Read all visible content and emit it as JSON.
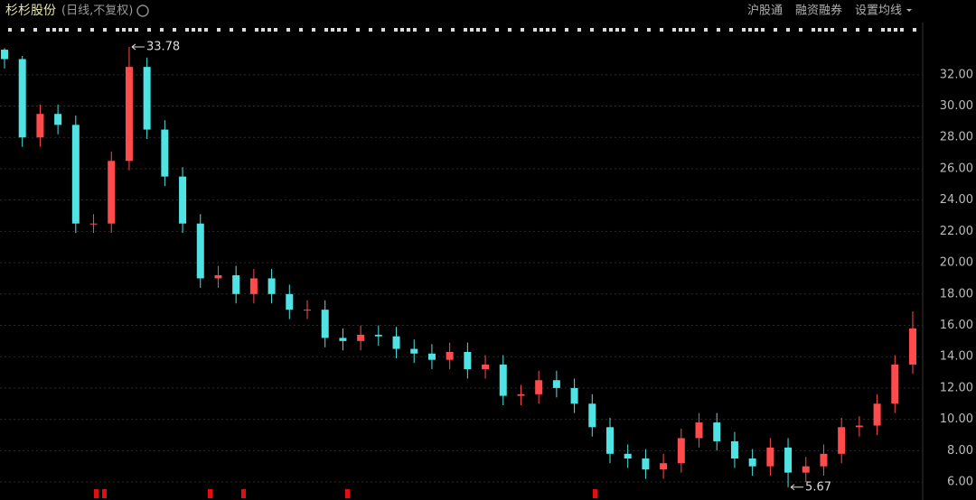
{
  "chart_data": {
    "type": "candlestick",
    "title": "杉杉股份",
    "subtitle": "(日线,不复权)",
    "buttons": [
      "沪股通",
      "融资融券",
      "设置均线"
    ],
    "up_color": "#ff4b4b",
    "down_color": "#4fe3e3",
    "grid": true,
    "ylim": [
      4.85,
      34.18
    ],
    "yticks": [
      {
        "value": 6,
        "label": "6.00"
      },
      {
        "value": 8,
        "label": "8.00"
      },
      {
        "value": 10,
        "label": "10.00"
      },
      {
        "value": 12,
        "label": "12.00"
      },
      {
        "value": 14,
        "label": "14.00"
      },
      {
        "value": 16,
        "label": "16.00"
      },
      {
        "value": 18,
        "label": "18.00"
      },
      {
        "value": 20,
        "label": "20.00"
      },
      {
        "value": 22,
        "label": "22.00"
      },
      {
        "value": 24,
        "label": "24.00"
      },
      {
        "value": 26,
        "label": "26.00"
      },
      {
        "value": 28,
        "label": "28.00"
      },
      {
        "value": 30,
        "label": "30.00"
      },
      {
        "value": 32,
        "label": "32.00"
      }
    ],
    "open": [
      33.6,
      33.0,
      28.0,
      29.5,
      28.8,
      22.5,
      22.5,
      26.5,
      32.5,
      28.5,
      25.5,
      22.5,
      19.0,
      19.2,
      18.0,
      19.0,
      18.0,
      17.0,
      17.0,
      15.2,
      15.0,
      15.4,
      15.3,
      14.5,
      14.2,
      13.8,
      14.3,
      13.2,
      13.5,
      11.5,
      11.6,
      12.5,
      12.0,
      11.0,
      9.5,
      7.8,
      7.5,
      6.8,
      7.2,
      8.8,
      9.8,
      8.6,
      7.5,
      7.0,
      8.2,
      6.6,
      7.0,
      7.8,
      9.5,
      9.6,
      11.0,
      13.5
    ],
    "high": [
      33.7,
      33.2,
      30.1,
      30.1,
      29.4,
      23.1,
      27.1,
      33.78,
      33.1,
      29.1,
      26.1,
      23.1,
      19.8,
      19.8,
      19.6,
      19.6,
      18.6,
      17.6,
      17.6,
      15.8,
      16.0,
      16.0,
      15.9,
      15.1,
      14.8,
      14.9,
      14.9,
      14.1,
      14.1,
      12.2,
      13.1,
      13.1,
      12.6,
      11.6,
      10.1,
      8.4,
      8.1,
      7.8,
      9.4,
      10.4,
      10.4,
      9.2,
      8.1,
      8.8,
      8.8,
      7.6,
      8.4,
      10.1,
      10.2,
      11.6,
      14.1,
      16.9
    ],
    "low": [
      32.4,
      27.4,
      27.4,
      28.2,
      21.9,
      21.9,
      21.9,
      25.9,
      27.9,
      24.9,
      21.9,
      18.4,
      18.4,
      17.4,
      17.4,
      17.4,
      16.4,
      16.4,
      14.6,
      14.4,
      14.4,
      14.7,
      13.9,
      13.6,
      13.2,
      13.2,
      12.6,
      12.6,
      10.9,
      10.9,
      11.0,
      11.4,
      10.4,
      8.9,
      7.2,
      6.9,
      6.2,
      6.2,
      6.6,
      8.2,
      8.0,
      6.9,
      6.4,
      6.4,
      5.67,
      6.0,
      6.4,
      7.2,
      8.9,
      9.0,
      10.4,
      12.9
    ],
    "close": [
      33.0,
      28.0,
      29.5,
      28.8,
      22.5,
      22.5,
      26.5,
      32.5,
      28.5,
      25.5,
      22.5,
      19.0,
      19.2,
      18.0,
      19.0,
      18.0,
      17.0,
      17.0,
      15.2,
      15.0,
      15.4,
      15.3,
      14.5,
      14.2,
      13.8,
      14.3,
      13.2,
      13.5,
      11.5,
      11.6,
      12.5,
      12.0,
      11.0,
      9.5,
      7.8,
      7.5,
      6.8,
      7.2,
      8.8,
      9.8,
      8.6,
      7.5,
      7.0,
      8.2,
      6.6,
      7.0,
      7.8,
      9.5,
      9.6,
      11.0,
      13.5,
      15.8
    ]
  }
}
